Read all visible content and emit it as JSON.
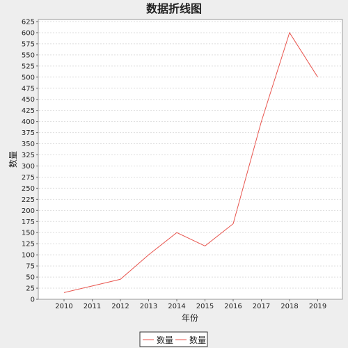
{
  "chart_data": {
    "type": "line",
    "title": "数据折线图",
    "xlabel": "年份",
    "ylabel": "数量",
    "categories": [
      "2010",
      "2011",
      "2012",
      "2013",
      "2014",
      "2015",
      "2016",
      "2017",
      "2018",
      "2019"
    ],
    "series": [
      {
        "name": "数量",
        "values": [
          15,
          30,
          45,
          100,
          150,
          120,
          170,
          400,
          600,
          500
        ]
      }
    ],
    "ylim": [
      0,
      625
    ],
    "ytick_step": 25,
    "grid": true,
    "legend": {
      "placement": "bottom",
      "entries": [
        "数量",
        "数量"
      ]
    },
    "colors": {
      "series": "#e8554e",
      "plot_bg": "#ffffff",
      "grid": "#dddddd",
      "page_bg": "#eeeeee"
    }
  }
}
